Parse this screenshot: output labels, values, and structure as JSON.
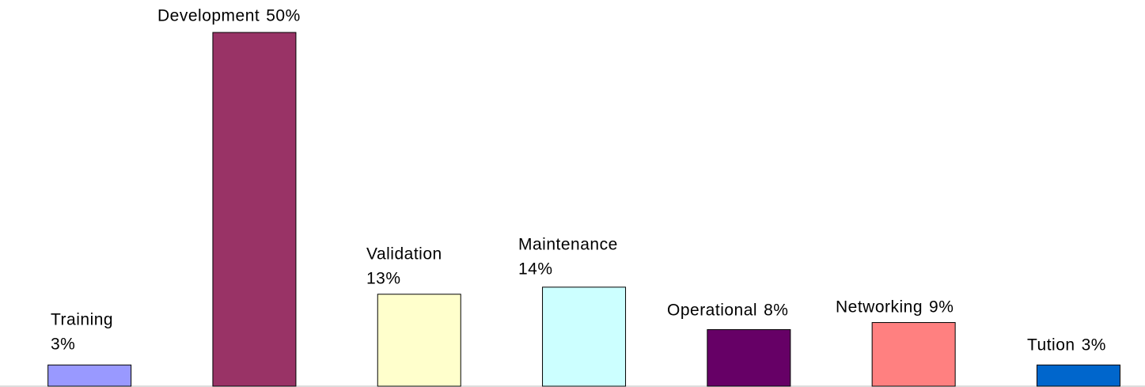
{
  "chart_data": {
    "type": "bar",
    "categories": [
      "Training",
      "Development",
      "Validation",
      "Maintenance",
      "Operational",
      "Networking",
      "Tution"
    ],
    "values": [
      3,
      50,
      13,
      14,
      8,
      9,
      3
    ],
    "value_labels": [
      "3%",
      "50%",
      "13%",
      "14%",
      "8%",
      "9%",
      "3%"
    ],
    "colors": [
      "#9999ff",
      "#993366",
      "#ffffcc",
      "#ccffff",
      "#660066",
      "#ff8080",
      "#0066cc"
    ]
  }
}
